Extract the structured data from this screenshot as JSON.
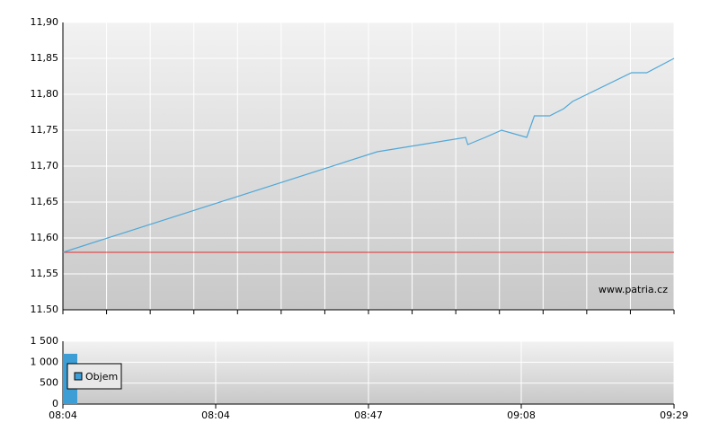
{
  "chart_data": [
    {
      "type": "line",
      "xlim": [
        0,
        56
      ],
      "xticks": [
        0,
        4,
        8,
        12,
        16,
        20,
        24,
        28,
        32,
        36,
        40,
        44,
        48,
        52,
        56
      ],
      "ylim": [
        11.5,
        11.9
      ],
      "yticks": [
        {
          "value": 11.5,
          "label": "11.50"
        },
        {
          "value": 11.55,
          "label": "11,55"
        },
        {
          "value": 11.6,
          "label": "11,60"
        },
        {
          "value": 11.65,
          "label": "11,65"
        },
        {
          "value": 11.7,
          "label": "11,70"
        },
        {
          "value": 11.75,
          "label": "11,75"
        },
        {
          "value": 11.8,
          "label": "11,80"
        },
        {
          "value": 11.85,
          "label": "11,85"
        },
        {
          "value": 11.9,
          "label": "11,90"
        }
      ],
      "grid": true,
      "series": [
        {
          "color": "#4fa8d8",
          "x": [
            0,
            28.8,
            36.9,
            37.1,
            38.7,
            40.2,
            42.5,
            43.2,
            44.6,
            45.9,
            46.7,
            52.1,
            53.5,
            56
          ],
          "values": [
            11.58,
            11.72,
            11.74,
            11.73,
            11.74,
            11.75,
            11.74,
            11.77,
            11.77,
            11.78,
            11.79,
            11.83,
            11.83,
            11.85
          ]
        }
      ],
      "reference_line": {
        "value": 11.58,
        "color": "#e03030"
      },
      "annotation": "www.patria.cz"
    },
    {
      "type": "bar",
      "xlim": [
        0,
        56
      ],
      "xticks": [
        {
          "value": 0,
          "label": "08:04"
        },
        {
          "value": 14,
          "label": "08:04"
        },
        {
          "value": 28,
          "label": "08:47"
        },
        {
          "value": 42,
          "label": "09:08"
        },
        {
          "value": 56,
          "label": "09:29"
        }
      ],
      "ylim": [
        0,
        1500
      ],
      "yticks": [
        0,
        500,
        {
          "value": 1000,
          "label": "1 000"
        },
        {
          "value": 1500,
          "label": "1 500"
        }
      ],
      "grid": true,
      "series": [
        {
          "name": "Objem",
          "color": "#3d9ed6",
          "x": [
            0
          ],
          "values": [
            1200
          ]
        }
      ]
    }
  ]
}
